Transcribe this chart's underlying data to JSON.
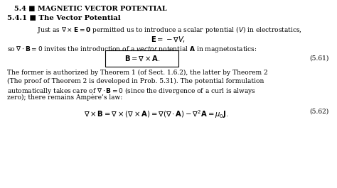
{
  "background_color": "#ffffff",
  "section_title": "5.4 ■ MAGNETIC VECTOR POTENTIAL",
  "subsection_title": "5.4.1 ■ The Vector Potential",
  "para1_line1": "The former is authorized by Theorem 1 (of Sect. 1.6.2), the latter by Theorem 2",
  "para1_line2": "(The proof of Theorem 2 is developed in Prob. 5.31). The potential formulation",
  "para1_line4": "zero); there remains Ampère’s law:",
  "eq_number1": "(5.61)",
  "eq_number2": "(5.62)"
}
